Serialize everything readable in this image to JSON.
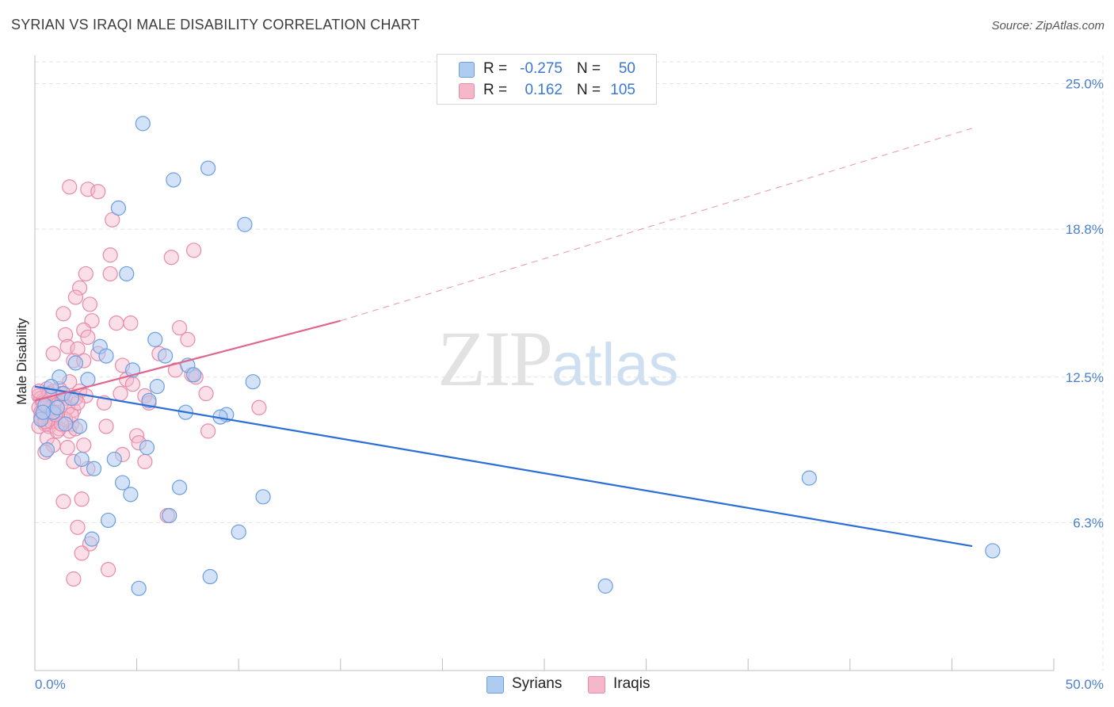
{
  "header": {
    "title": "SYRIAN VS IRAQI MALE DISABILITY CORRELATION CHART",
    "source": "Source: ZipAtlas.com"
  },
  "watermark": {
    "zip": "ZIP",
    "atlas": "atlas"
  },
  "legend": {
    "r_label": "R =",
    "n_label": "N =",
    "rows": [
      {
        "name": "Syrians",
        "r": "-0.275",
        "n": "50"
      },
      {
        "name": "Iraqis",
        "r": "0.162",
        "n": "105"
      }
    ]
  },
  "colors": {
    "syrians_fill": "#aecbf0",
    "syrians_stroke": "#6a9ee0",
    "syrians_line": "#2b6fd6",
    "iraqis_fill": "#f5b8cb",
    "iraqis_stroke": "#e88aa8",
    "iraqis_line": "#e0668f",
    "tick_label": "#4a7fcf"
  },
  "chart_data": {
    "type": "scatter",
    "title": "SYRIAN VS IRAQI MALE DISABILITY CORRELATION CHART",
    "xlabel": "",
    "ylabel": "Male Disability",
    "xlim": [
      0,
      50
    ],
    "ylim": [
      0,
      26.2
    ],
    "x_tick_labels": {
      "left": "0.0%",
      "right": "50.0%"
    },
    "y_ticks": [
      {
        "value": 6.3,
        "label": "6.3%"
      },
      {
        "value": 12.5,
        "label": "12.5%"
      },
      {
        "value": 18.8,
        "label": "18.8%"
      },
      {
        "value": 25.0,
        "label": "25.0%"
      }
    ],
    "grid": true,
    "series": [
      {
        "name": "Syrians",
        "trend": {
          "x0": 0,
          "y0": 12.1,
          "x1": 46,
          "y1": 5.3
        },
        "points": [
          [
            5.3,
            23.3
          ],
          [
            8.5,
            21.4
          ],
          [
            6.8,
            20.9
          ],
          [
            4.1,
            19.7
          ],
          [
            10.3,
            19.0
          ],
          [
            4.5,
            16.9
          ],
          [
            5.9,
            14.1
          ],
          [
            3.2,
            13.8
          ],
          [
            3.5,
            13.4
          ],
          [
            6.4,
            13.4
          ],
          [
            2.0,
            13.1
          ],
          [
            7.5,
            13.0
          ],
          [
            4.8,
            12.8
          ],
          [
            7.8,
            12.6
          ],
          [
            2.6,
            12.4
          ],
          [
            1.2,
            12.5
          ],
          [
            10.7,
            12.3
          ],
          [
            0.8,
            12.1
          ],
          [
            6.0,
            12.1
          ],
          [
            1.4,
            11.8
          ],
          [
            1.8,
            11.6
          ],
          [
            5.6,
            11.5
          ],
          [
            0.5,
            11.3
          ],
          [
            0.9,
            11.0
          ],
          [
            7.4,
            11.0
          ],
          [
            9.4,
            10.9
          ],
          [
            9.1,
            10.8
          ],
          [
            0.3,
            10.7
          ],
          [
            1.5,
            10.5
          ],
          [
            2.2,
            10.4
          ],
          [
            5.5,
            9.5
          ],
          [
            0.6,
            9.4
          ],
          [
            3.9,
            9.0
          ],
          [
            2.3,
            9.0
          ],
          [
            2.9,
            8.6
          ],
          [
            38.0,
            8.2
          ],
          [
            4.3,
            8.0
          ],
          [
            7.1,
            7.8
          ],
          [
            4.7,
            7.5
          ],
          [
            11.2,
            7.4
          ],
          [
            3.6,
            6.4
          ],
          [
            6.6,
            6.6
          ],
          [
            10.0,
            5.9
          ],
          [
            2.8,
            5.6
          ],
          [
            47.0,
            5.1
          ],
          [
            8.6,
            4.0
          ],
          [
            5.1,
            3.5
          ],
          [
            28.0,
            3.6
          ],
          [
            0.4,
            11.0
          ],
          [
            1.1,
            11.2
          ]
        ]
      },
      {
        "name": "Iraqis",
        "trend": {
          "x0": 0,
          "y0": 11.5,
          "x1": 15,
          "y1": 14.9
        },
        "trend_dashed": {
          "x0": 15,
          "y0": 14.9,
          "x1": 46,
          "y1": 23.1
        },
        "points": [
          [
            1.7,
            20.6
          ],
          [
            2.6,
            20.5
          ],
          [
            3.1,
            20.4
          ],
          [
            3.8,
            19.2
          ],
          [
            7.8,
            17.9
          ],
          [
            3.7,
            17.7
          ],
          [
            6.7,
            17.6
          ],
          [
            2.5,
            16.9
          ],
          [
            3.7,
            16.9
          ],
          [
            2.2,
            16.3
          ],
          [
            2.0,
            15.9
          ],
          [
            2.7,
            15.6
          ],
          [
            1.4,
            15.2
          ],
          [
            2.8,
            14.9
          ],
          [
            4.0,
            14.8
          ],
          [
            4.7,
            14.8
          ],
          [
            2.4,
            14.5
          ],
          [
            7.1,
            14.6
          ],
          [
            1.5,
            14.3
          ],
          [
            2.6,
            14.2
          ],
          [
            7.5,
            14.1
          ],
          [
            1.6,
            13.8
          ],
          [
            2.1,
            13.7
          ],
          [
            0.9,
            13.5
          ],
          [
            3.1,
            13.5
          ],
          [
            6.1,
            13.5
          ],
          [
            1.9,
            13.2
          ],
          [
            2.4,
            13.2
          ],
          [
            4.3,
            13.0
          ],
          [
            6.9,
            12.8
          ],
          [
            7.7,
            12.6
          ],
          [
            7.9,
            12.5
          ],
          [
            4.5,
            12.4
          ],
          [
            1.7,
            12.3
          ],
          [
            4.8,
            12.2
          ],
          [
            0.6,
            12.0
          ],
          [
            1.2,
            12.0
          ],
          [
            2.2,
            11.9
          ],
          [
            4.2,
            11.8
          ],
          [
            8.4,
            11.8
          ],
          [
            0.2,
            11.7
          ],
          [
            0.8,
            11.7
          ],
          [
            1.5,
            11.6
          ],
          [
            2.5,
            11.7
          ],
          [
            5.4,
            11.7
          ],
          [
            0.4,
            11.5
          ],
          [
            1.0,
            11.5
          ],
          [
            1.3,
            11.4
          ],
          [
            3.4,
            11.4
          ],
          [
            5.6,
            11.4
          ],
          [
            0.2,
            11.2
          ],
          [
            0.7,
            11.1
          ],
          [
            1.9,
            11.1
          ],
          [
            11.0,
            11.2
          ],
          [
            0.3,
            11.0
          ],
          [
            0.9,
            10.8
          ],
          [
            1.0,
            10.6
          ],
          [
            1.8,
            10.5
          ],
          [
            0.5,
            10.5
          ],
          [
            0.2,
            10.4
          ],
          [
            0.7,
            10.4
          ],
          [
            1.2,
            10.3
          ],
          [
            3.5,
            10.4
          ],
          [
            1.7,
            10.2
          ],
          [
            2.0,
            10.3
          ],
          [
            8.5,
            10.2
          ],
          [
            0.6,
            9.9
          ],
          [
            5.0,
            10.0
          ],
          [
            0.9,
            9.6
          ],
          [
            1.6,
            9.5
          ],
          [
            2.4,
            9.6
          ],
          [
            5.1,
            9.7
          ],
          [
            0.5,
            9.3
          ],
          [
            4.3,
            9.2
          ],
          [
            1.9,
            8.9
          ],
          [
            5.4,
            8.9
          ],
          [
            2.6,
            8.6
          ],
          [
            1.4,
            7.2
          ],
          [
            2.3,
            7.3
          ],
          [
            6.5,
            6.6
          ],
          [
            2.1,
            6.1
          ],
          [
            2.7,
            5.4
          ],
          [
            2.3,
            5.0
          ],
          [
            3.6,
            4.3
          ],
          [
            1.9,
            3.9
          ],
          [
            0.3,
            11.6
          ],
          [
            0.4,
            10.9
          ],
          [
            1.1,
            11.0
          ],
          [
            0.8,
            10.6
          ],
          [
            0.3,
            10.8
          ],
          [
            1.3,
            11.8
          ],
          [
            1.6,
            11.2
          ],
          [
            1.5,
            10.7
          ],
          [
            0.6,
            11.3
          ],
          [
            2.0,
            11.6
          ],
          [
            1.1,
            10.2
          ],
          [
            0.4,
            11.4
          ],
          [
            0.9,
            11.9
          ],
          [
            1.8,
            10.9
          ],
          [
            1.3,
            10.5
          ],
          [
            0.7,
            11.8
          ],
          [
            0.5,
            10.6
          ],
          [
            2.1,
            11.4
          ],
          [
            1.0,
            10.9
          ],
          [
            0.2,
            11.9
          ]
        ]
      }
    ]
  }
}
